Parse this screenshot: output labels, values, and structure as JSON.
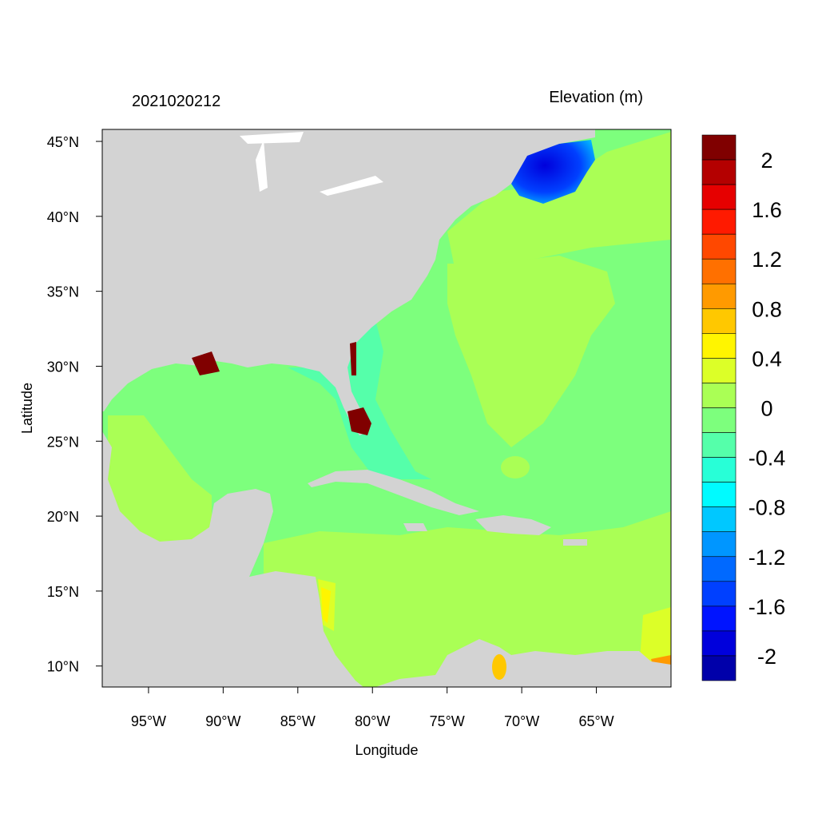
{
  "title_left": "2021020212",
  "title_right": "Elevation (m)",
  "xlabel": "Longitude",
  "ylabel": "Latitude",
  "x_ticks": [
    {
      "lon": -95,
      "label": "95°W"
    },
    {
      "lon": -90,
      "label": "90°W"
    },
    {
      "lon": -85,
      "label": "85°W"
    },
    {
      "lon": -80,
      "label": "80°W"
    },
    {
      "lon": -75,
      "label": "75°W"
    },
    {
      "lon": -70,
      "label": "70°W"
    },
    {
      "lon": -65,
      "label": "65°W"
    }
  ],
  "y_ticks": [
    {
      "lat": 45,
      "label": "45°N"
    },
    {
      "lat": 40,
      "label": "40°N"
    },
    {
      "lat": 35,
      "label": "35°N"
    },
    {
      "lat": 30,
      "label": "30°N"
    },
    {
      "lat": 25,
      "label": "25°N"
    },
    {
      "lat": 20,
      "label": "20°N"
    },
    {
      "lat": 15,
      "label": "15°N"
    },
    {
      "lat": 10,
      "label": "10°N"
    }
  ],
  "map_extent": {
    "lon": [
      -98.1,
      -60.0
    ],
    "lat": [
      8.6,
      45.8
    ]
  },
  "land_color": "#d3d3d3",
  "colorbar": {
    "colors": [
      "#800000",
      "#b40000",
      "#e60000",
      "#ff1a00",
      "#ff4800",
      "#ff7000",
      "#ff9a00",
      "#ffc800",
      "#fff500",
      "#dcff28",
      "#aaff55",
      "#7dff7d",
      "#55ffaa",
      "#28ffd7",
      "#00fbff",
      "#00c8ff",
      "#0096ff",
      "#0069ff",
      "#0040ff",
      "#0014ff",
      "#0000dc",
      "#0000aa"
    ],
    "labels": [
      "2",
      "1.6",
      "1.2",
      "0.8",
      "0.4",
      "0",
      "-0.4",
      "-0.8",
      "-1.2",
      "-1.6",
      "-2"
    ]
  }
}
